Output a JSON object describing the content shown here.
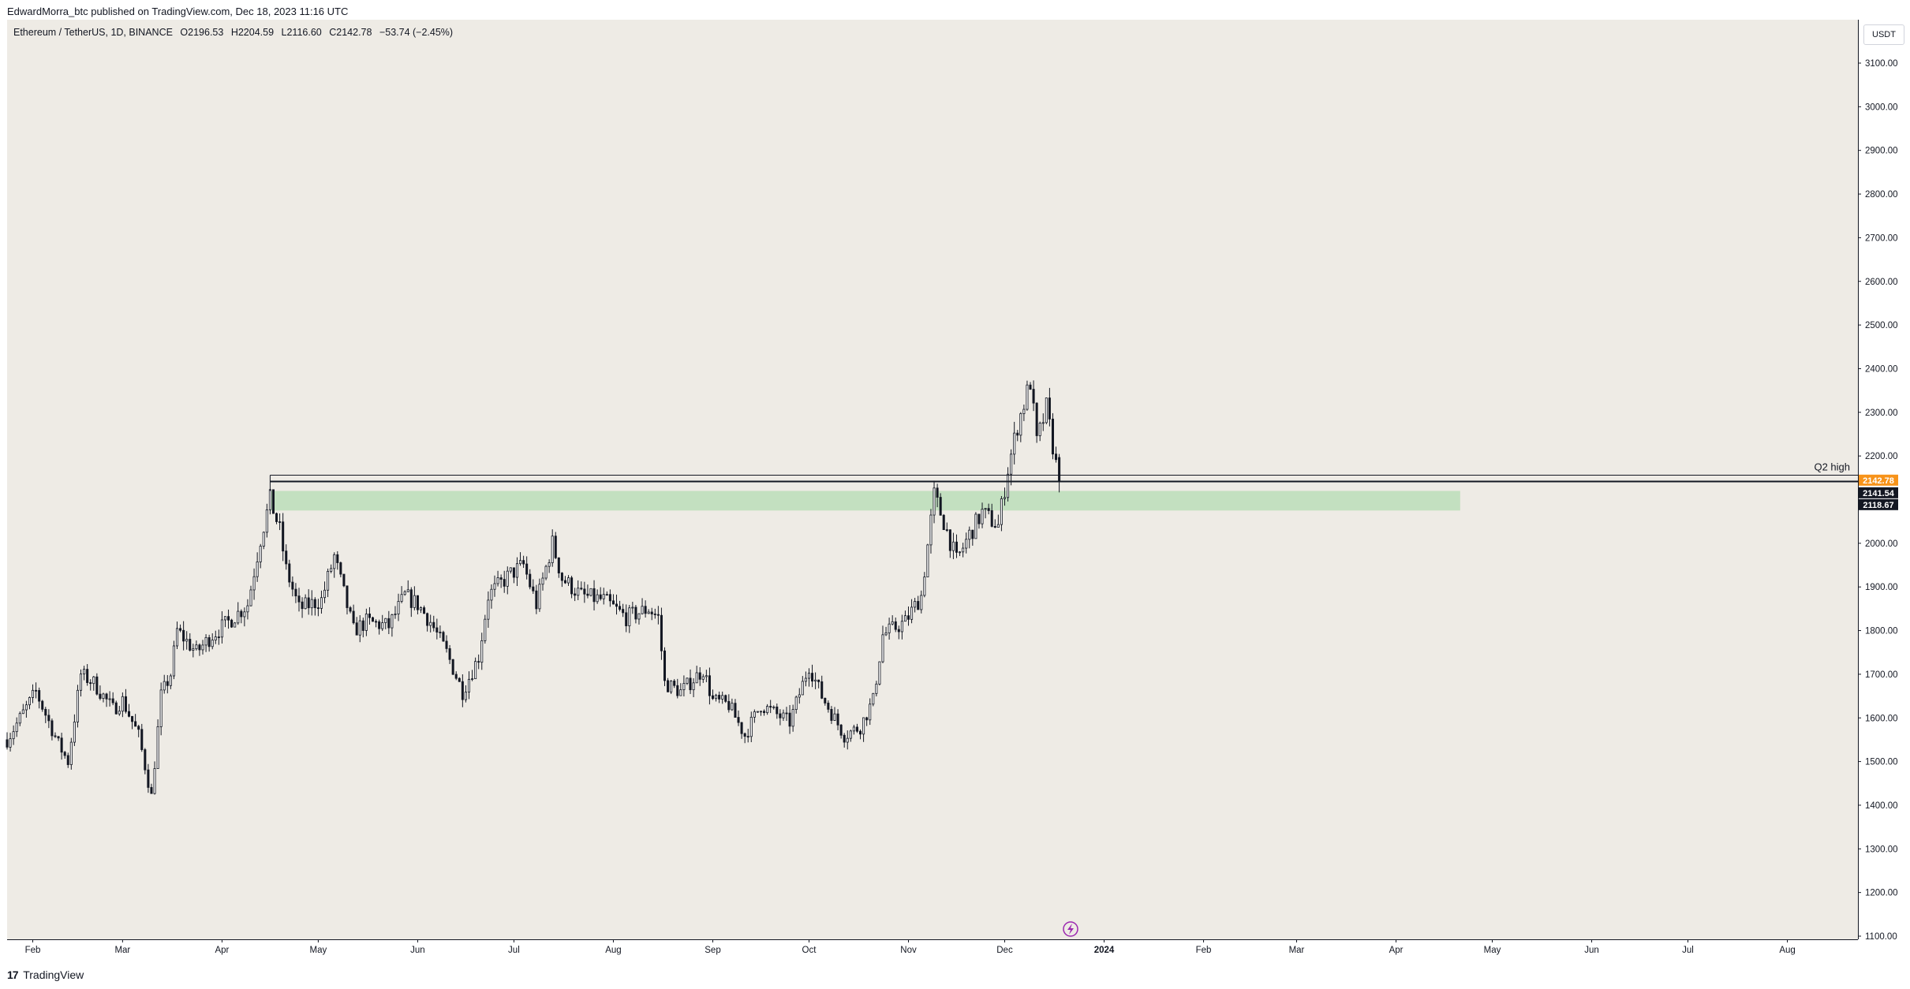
{
  "header": {
    "publisher_line": "EdwardMorra_btc published on TradingView.com, Dec 18, 2023 11:16 UTC"
  },
  "legend": {
    "symbol": "Ethereum / TetherUS, 1D, BINANCE",
    "open": "O2196.53",
    "high": "H2204.59",
    "low": "L2116.60",
    "close": "C2142.78",
    "change": "−53.74 (−2.45%)"
  },
  "price_axis": {
    "currency": "USDT"
  },
  "footer": {
    "brand": "TradingView",
    "brand_mark": "17"
  },
  "colors": {
    "plot_background": "#eeebe5",
    "candle": "#131722",
    "zone_fill": "#c3e0c0",
    "last_price_badge": "#f7931a",
    "level_badge": "#131722",
    "event_icon": "#9c27b0"
  },
  "chart_data": {
    "type": "candlestick",
    "title": "",
    "xlabel": "",
    "ylabel": "",
    "ylim": [
      1100,
      3100
    ],
    "x_range": [
      "2023-01-24",
      "2024-08-23"
    ],
    "x_ticks": [
      {
        "date": "2023-02-01",
        "label": "Feb"
      },
      {
        "date": "2023-03-01",
        "label": "Mar"
      },
      {
        "date": "2023-04-01",
        "label": "Apr"
      },
      {
        "date": "2023-05-01",
        "label": "May"
      },
      {
        "date": "2023-06-01",
        "label": "Jun"
      },
      {
        "date": "2023-07-01",
        "label": "Jul"
      },
      {
        "date": "2023-08-01",
        "label": "Aug"
      },
      {
        "date": "2023-09-01",
        "label": "Sep"
      },
      {
        "date": "2023-10-01",
        "label": "Oct"
      },
      {
        "date": "2023-11-01",
        "label": "Nov"
      },
      {
        "date": "2023-12-01",
        "label": "Dec"
      },
      {
        "date": "2024-01-01",
        "label": "2024"
      },
      {
        "date": "2024-02-01",
        "label": "Feb"
      },
      {
        "date": "2024-03-01",
        "label": "Mar"
      },
      {
        "date": "2024-04-01",
        "label": "Apr"
      },
      {
        "date": "2024-05-01",
        "label": "May"
      },
      {
        "date": "2024-06-01",
        "label": "Jun"
      },
      {
        "date": "2024-07-01",
        "label": "Jul"
      },
      {
        "date": "2024-08-01",
        "label": "Aug"
      }
    ],
    "y_ticks": [
      {
        "value": 3100,
        "label": "3100.00"
      },
      {
        "value": 3000,
        "label": "3000.00"
      },
      {
        "value": 2900,
        "label": "2900.00"
      },
      {
        "value": 2800,
        "label": "2800.00"
      },
      {
        "value": 2700,
        "label": "2700.00"
      },
      {
        "value": 2600,
        "label": "2600.00"
      },
      {
        "value": 2500,
        "label": "2500.00"
      },
      {
        "value": 2400,
        "label": "2400.00"
      },
      {
        "value": 2300,
        "label": "2300.00"
      },
      {
        "value": 2200,
        "label": "2200.00"
      },
      {
        "value": 2000,
        "label": "2000.00"
      },
      {
        "value": 1900,
        "label": "1900.00"
      },
      {
        "value": 1800,
        "label": "1800.00"
      },
      {
        "value": 1700,
        "label": "1700.00"
      },
      {
        "value": 1600,
        "label": "1600.00"
      },
      {
        "value": 1500,
        "label": "1500.00"
      },
      {
        "value": 1400,
        "label": "1400.00"
      },
      {
        "value": 1300,
        "label": "1300.00"
      },
      {
        "value": 1200,
        "label": "1200.00"
      },
      {
        "value": 1100,
        "label": "1100.00"
      }
    ],
    "price_path": [
      [
        "2023-01-24",
        1550
      ],
      [
        "2023-02-02",
        1660
      ],
      [
        "2023-02-09",
        1540
      ],
      [
        "2023-02-12",
        1500
      ],
      [
        "2023-02-16",
        1700
      ],
      [
        "2023-02-20",
        1680
      ],
      [
        "2023-02-26",
        1620
      ],
      [
        "2023-03-01",
        1640
      ],
      [
        "2023-03-06",
        1560
      ],
      [
        "2023-03-10",
        1420
      ],
      [
        "2023-03-13",
        1650
      ],
      [
        "2023-03-16",
        1700
      ],
      [
        "2023-03-18",
        1800
      ],
      [
        "2023-03-24",
        1750
      ],
      [
        "2023-03-29",
        1790
      ],
      [
        "2023-04-03",
        1820
      ],
      [
        "2023-04-09",
        1860
      ],
      [
        "2023-04-13",
        2010
      ],
      [
        "2023-04-16",
        2100
      ],
      [
        "2023-04-19",
        2030
      ],
      [
        "2023-04-21",
        1940
      ],
      [
        "2023-04-25",
        1850
      ],
      [
        "2023-05-02",
        1870
      ],
      [
        "2023-05-06",
        1970
      ],
      [
        "2023-05-12",
        1800
      ],
      [
        "2023-05-16",
        1820
      ],
      [
        "2023-05-23",
        1810
      ],
      [
        "2023-05-28",
        1880
      ],
      [
        "2023-06-01",
        1860
      ],
      [
        "2023-06-05",
        1820
      ],
      [
        "2023-06-10",
        1750
      ],
      [
        "2023-06-15",
        1660
      ],
      [
        "2023-06-20",
        1740
      ],
      [
        "2023-06-23",
        1880
      ],
      [
        "2023-06-30",
        1930
      ],
      [
        "2023-07-04",
        1950
      ],
      [
        "2023-07-08",
        1860
      ],
      [
        "2023-07-13",
        2000
      ],
      [
        "2023-07-16",
        1920
      ],
      [
        "2023-07-22",
        1880
      ],
      [
        "2023-07-29",
        1870
      ],
      [
        "2023-08-05",
        1830
      ],
      [
        "2023-08-12",
        1850
      ],
      [
        "2023-08-15",
        1830
      ],
      [
        "2023-08-17",
        1680
      ],
      [
        "2023-08-22",
        1660
      ],
      [
        "2023-08-29",
        1710
      ],
      [
        "2023-09-01",
        1640
      ],
      [
        "2023-09-06",
        1630
      ],
      [
        "2023-09-11",
        1560
      ],
      [
        "2023-09-16",
        1630
      ],
      [
        "2023-09-25",
        1590
      ],
      [
        "2023-10-01",
        1720
      ],
      [
        "2023-10-05",
        1650
      ],
      [
        "2023-10-12",
        1560
      ],
      [
        "2023-10-17",
        1580
      ],
      [
        "2023-10-21",
        1640
      ],
      [
        "2023-10-24",
        1790
      ],
      [
        "2023-10-31",
        1820
      ],
      [
        "2023-11-05",
        1880
      ],
      [
        "2023-11-09",
        2110
      ],
      [
        "2023-11-12",
        2050
      ],
      [
        "2023-11-16",
        1960
      ],
      [
        "2023-11-20",
        2020
      ],
      [
        "2023-11-24",
        2070
      ],
      [
        "2023-11-29",
        2040
      ],
      [
        "2023-12-02",
        2170
      ],
      [
        "2023-12-05",
        2270
      ],
      [
        "2023-12-09",
        2370
      ],
      [
        "2023-12-11",
        2230
      ],
      [
        "2023-12-14",
        2310
      ],
      [
        "2023-12-17",
        2180
      ],
      [
        "2023-12-18",
        2142.78
      ]
    ],
    "levels": [
      {
        "name": "Q2 high",
        "label": "Q2 high",
        "value": 2156,
        "from": "2023-04-16",
        "to": "2024-08-23"
      }
    ],
    "zones": [
      {
        "from": "2023-04-16",
        "to": "2024-04-21",
        "low": 2075,
        "high": 2120
      }
    ],
    "price_labels": [
      {
        "value": 2142.78,
        "label": "2142.78",
        "style": "last"
      },
      {
        "value": 2141.54,
        "label": "2141.54",
        "style": "level"
      },
      {
        "value": 2118.67,
        "label": "2118.67",
        "style": "level"
      }
    ],
    "current_ohlc": {
      "open": 2196.53,
      "high": 2204.59,
      "low": 2116.6,
      "close": 2142.78
    }
  }
}
